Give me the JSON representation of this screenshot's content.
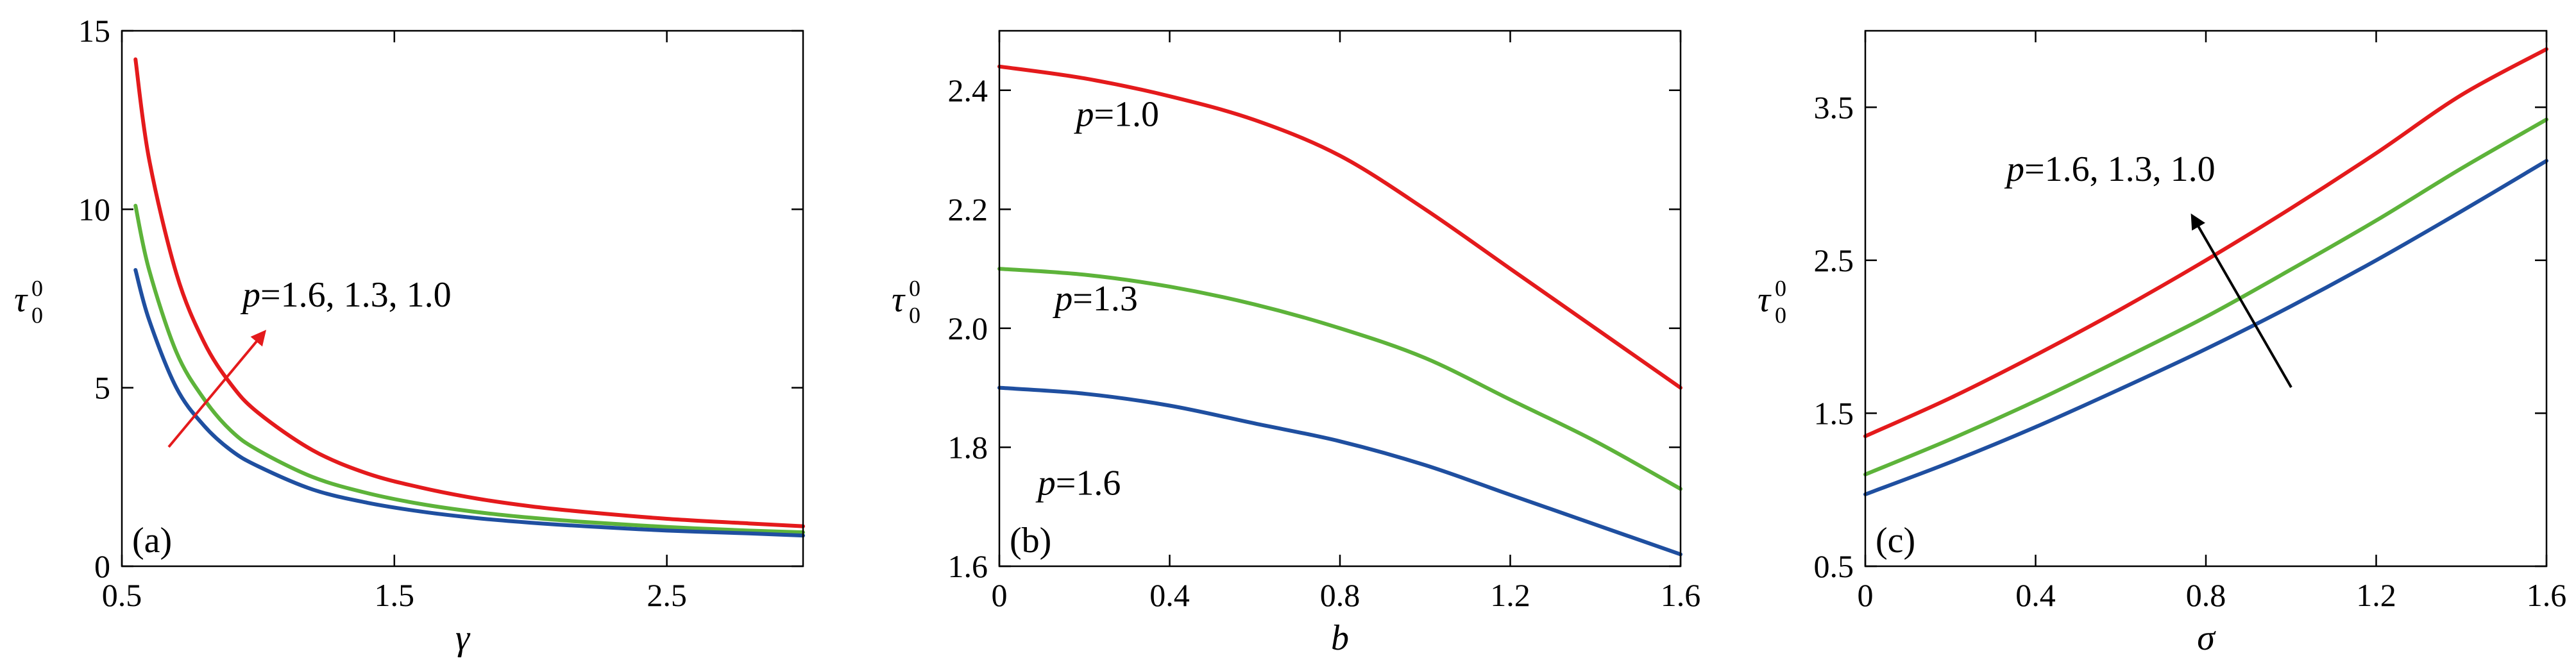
{
  "colors": {
    "p1.0": "#e41a1c",
    "p1.3": "#5db33a",
    "p1.6": "#1f4fa0",
    "arrow_a": "#e41a1c",
    "arrow_c": "#000000"
  },
  "chart_data": [
    {
      "type": "line",
      "panel_label": "(a)",
      "xlabel": "γ",
      "ylabel": "τ",
      "ylabel_sub": "0",
      "ylabel_sup": "0",
      "xlim": [
        0.5,
        3.0
      ],
      "ylim": [
        0,
        15
      ],
      "xticks": [
        0.5,
        1.5,
        2.5
      ],
      "xtick_labels": [
        "0.5",
        "1.5",
        "2.5"
      ],
      "yticks": [
        0,
        5,
        10,
        15
      ],
      "ytick_labels": [
        "0",
        "5",
        "10",
        "15"
      ],
      "annotation": {
        "italic": "p",
        "text": "=1.6, 1.3, 1.0"
      },
      "series": [
        {
          "key": "p1.0",
          "x": [
            0.55,
            0.6,
            0.7,
            0.8,
            0.9,
            1.0,
            1.2,
            1.4,
            1.6,
            1.8,
            2.0,
            2.2,
            2.5,
            2.8,
            3.0
          ],
          "y": [
            14.2,
            11.4,
            8.2,
            6.3,
            5.1,
            4.3,
            3.25,
            2.6,
            2.2,
            1.9,
            1.68,
            1.52,
            1.33,
            1.2,
            1.12
          ]
        },
        {
          "key": "p1.3",
          "x": [
            0.55,
            0.6,
            0.7,
            0.8,
            0.9,
            1.0,
            1.2,
            1.4,
            1.6,
            1.8,
            2.0,
            2.2,
            2.5,
            2.8,
            3.0
          ],
          "y": [
            10.1,
            8.3,
            6.0,
            4.7,
            3.8,
            3.25,
            2.5,
            2.05,
            1.74,
            1.52,
            1.36,
            1.24,
            1.1,
            1.0,
            0.95
          ]
        },
        {
          "key": "p1.6",
          "x": [
            0.55,
            0.6,
            0.7,
            0.8,
            0.9,
            1.0,
            1.2,
            1.4,
            1.6,
            1.8,
            2.0,
            2.2,
            2.5,
            2.8,
            3.0
          ],
          "y": [
            8.3,
            6.9,
            5.0,
            3.95,
            3.25,
            2.8,
            2.15,
            1.78,
            1.53,
            1.35,
            1.22,
            1.12,
            1.0,
            0.92,
            0.86
          ]
        }
      ]
    },
    {
      "type": "line",
      "panel_label": "(b)",
      "xlabel": "b",
      "ylabel": "τ",
      "ylabel_sub": "0",
      "ylabel_sup": "0",
      "xlim": [
        0,
        1.6
      ],
      "ylim": [
        1.6,
        2.5
      ],
      "xticks": [
        0,
        0.4,
        0.8,
        1.2,
        1.6
      ],
      "xtick_labels": [
        "0",
        "0.4",
        "0.8",
        "1.2",
        "1.6"
      ],
      "yticks": [
        1.6,
        1.8,
        2.0,
        2.2,
        2.4
      ],
      "ytick_labels": [
        "1.6",
        "1.8",
        "2.0",
        "2.2",
        "2.4"
      ],
      "labels": [
        {
          "key": "p1.0",
          "italic": "p",
          "text": "=1.0",
          "x": 0.18,
          "y": 2.34
        },
        {
          "key": "p1.3",
          "italic": "p",
          "text": "=1.3",
          "x": 0.13,
          "y": 2.03
        },
        {
          "key": "p1.6",
          "italic": "p",
          "text": "=1.6",
          "x": 0.09,
          "y": 1.72
        }
      ],
      "series": [
        {
          "key": "p1.0",
          "x": [
            0,
            0.2,
            0.4,
            0.6,
            0.8,
            1.0,
            1.2,
            1.4,
            1.6
          ],
          "y": [
            2.44,
            2.42,
            2.39,
            2.35,
            2.29,
            2.2,
            2.1,
            2.0,
            1.9
          ]
        },
        {
          "key": "p1.3",
          "x": [
            0,
            0.2,
            0.4,
            0.6,
            0.8,
            1.0,
            1.2,
            1.4,
            1.6
          ],
          "y": [
            2.1,
            2.09,
            2.07,
            2.04,
            2.0,
            1.95,
            1.88,
            1.81,
            1.73
          ]
        },
        {
          "key": "p1.6",
          "x": [
            0,
            0.2,
            0.4,
            0.6,
            0.8,
            1.0,
            1.2,
            1.4,
            1.6
          ],
          "y": [
            1.9,
            1.89,
            1.87,
            1.84,
            1.81,
            1.77,
            1.72,
            1.67,
            1.62
          ]
        }
      ]
    },
    {
      "type": "line",
      "panel_label": "(c)",
      "xlabel": "σ",
      "ylabel": "τ",
      "ylabel_sub": "0",
      "ylabel_sup": "0",
      "xlim": [
        0,
        1.6
      ],
      "ylim": [
        0.5,
        4.0
      ],
      "xticks": [
        0,
        0.4,
        0.8,
        1.2,
        1.6
      ],
      "xtick_labels": [
        "0",
        "0.4",
        "0.8",
        "1.2",
        "1.6"
      ],
      "yticks": [
        0.5,
        1.5,
        2.5,
        3.5
      ],
      "ytick_labels": [
        "0.5",
        "1.5",
        "2.5",
        "3.5"
      ],
      "annotation": {
        "italic": "p",
        "text": "=1.6, 1.3, 1.0"
      },
      "series": [
        {
          "key": "p1.0",
          "x": [
            0,
            0.2,
            0.4,
            0.6,
            0.8,
            1.0,
            1.2,
            1.4,
            1.6
          ],
          "y": [
            1.35,
            1.6,
            1.88,
            2.18,
            2.5,
            2.84,
            3.2,
            3.58,
            3.88
          ]
        },
        {
          "key": "p1.3",
          "x": [
            0,
            0.2,
            0.4,
            0.6,
            0.8,
            1.0,
            1.2,
            1.4,
            1.6
          ],
          "y": [
            1.1,
            1.33,
            1.58,
            1.85,
            2.13,
            2.44,
            2.76,
            3.1,
            3.42
          ]
        },
        {
          "key": "p1.6",
          "x": [
            0,
            0.2,
            0.4,
            0.6,
            0.8,
            1.0,
            1.2,
            1.4,
            1.6
          ],
          "y": [
            0.97,
            1.18,
            1.41,
            1.66,
            1.92,
            2.2,
            2.5,
            2.82,
            3.15
          ]
        }
      ]
    }
  ]
}
